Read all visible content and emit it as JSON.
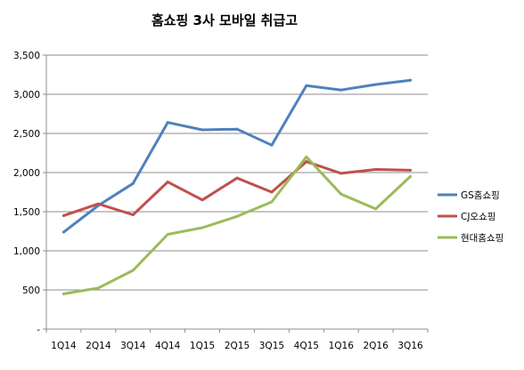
{
  "chart_data": {
    "type": "line",
    "title": "홈쇼핑 3사 모바일 취급고",
    "xlabel": "",
    "ylabel": "",
    "categories": [
      "1Q14",
      "2Q14",
      "3Q14",
      "4Q14",
      "1Q15",
      "2Q15",
      "3Q15",
      "4Q15",
      "1Q16",
      "2Q16",
      "3Q16"
    ],
    "ylim": [
      0,
      3500
    ],
    "y_ticks": [
      0,
      500,
      1000,
      1500,
      2000,
      2500,
      3000,
      3500
    ],
    "y_tick_labels": [
      "-",
      "500",
      "1,000",
      "1,500",
      "2,000",
      "2,500",
      "3,000",
      "3,500"
    ],
    "grid": "horizontal",
    "legend_position": "right",
    "series": [
      {
        "name": "GS홈쇼핑",
        "color": "#4f81bd",
        "values": [
          1240,
          1580,
          1860,
          2640,
          2545,
          2555,
          2350,
          3110,
          3055,
          3125,
          3180
        ]
      },
      {
        "name": "CJ오쇼핑",
        "color": "#c0504d",
        "values": [
          1450,
          1600,
          1460,
          1880,
          1650,
          1930,
          1750,
          2140,
          1990,
          2040,
          2030
        ]
      },
      {
        "name": "현대홈쇼핑",
        "color": "#9bbb59",
        "values": [
          450,
          525,
          750,
          1210,
          1295,
          1440,
          1625,
          2200,
          1725,
          1535,
          1950
        ]
      }
    ]
  }
}
